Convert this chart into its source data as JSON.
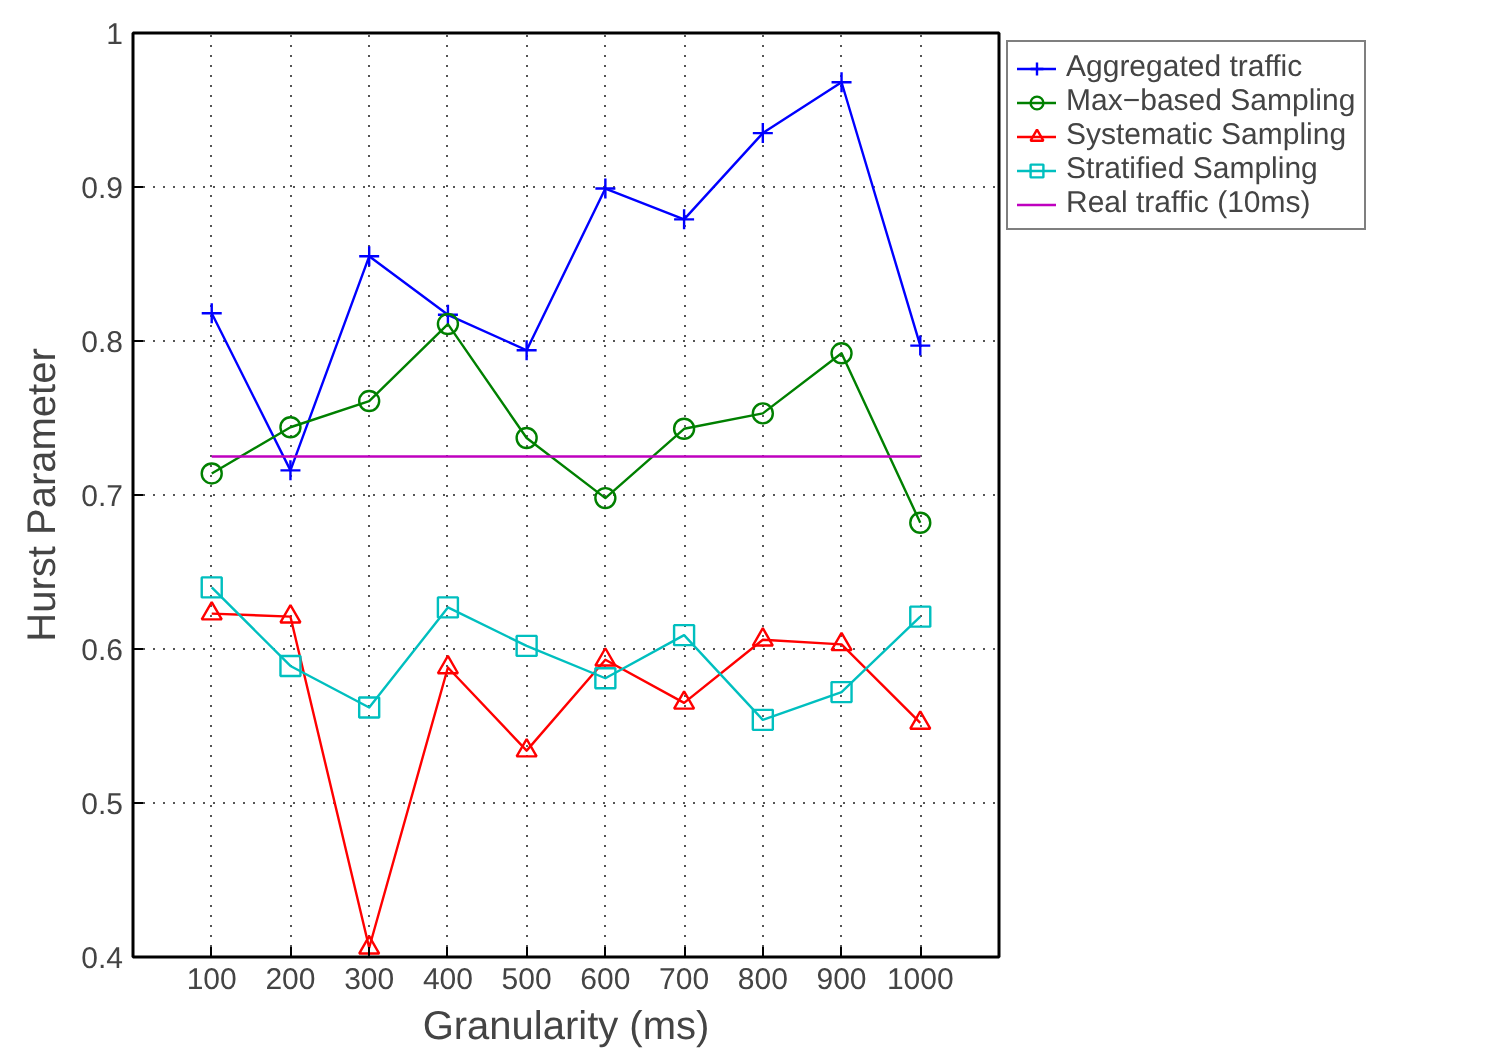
{
  "chart_data": {
    "type": "line",
    "xlabel": "Granularity (ms)",
    "ylabel": "Hurst Parameter",
    "x": [
      100,
      200,
      300,
      400,
      500,
      600,
      700,
      800,
      900,
      1000
    ],
    "series": [
      {
        "name": "Aggregated traffic",
        "color": "#0000ff",
        "marker": "cross",
        "values": [
          0.818,
          0.716,
          0.855,
          0.817,
          0.794,
          0.899,
          0.879,
          0.935,
          0.968,
          0.797
        ]
      },
      {
        "name": "Max−based Sampling",
        "color": "#008000",
        "marker": "circle",
        "values": [
          0.714,
          0.744,
          0.761,
          0.811,
          0.737,
          0.698,
          0.743,
          0.753,
          0.792,
          0.682
        ]
      },
      {
        "name": "Systematic Sampling",
        "color": "#ff0000",
        "marker": "triangle",
        "values": [
          0.623,
          0.621,
          0.406,
          0.588,
          0.534,
          0.593,
          0.565,
          0.606,
          0.603,
          0.552
        ]
      },
      {
        "name": "Stratified Sampling",
        "color": "#00bfbf",
        "marker": "square",
        "values": [
          0.64,
          0.589,
          0.562,
          0.627,
          0.602,
          0.581,
          0.609,
          0.554,
          0.572,
          0.621
        ]
      },
      {
        "name": "Real traffic (10ms)",
        "color": "#bf00bf",
        "marker": "none",
        "values": [
          0.725,
          0.725,
          0.725,
          0.725,
          0.725,
          0.725,
          0.725,
          0.725,
          0.725,
          0.725
        ]
      }
    ],
    "xlim": [
      0,
      1100
    ],
    "xticks": [
      100,
      200,
      300,
      400,
      500,
      600,
      700,
      800,
      900,
      1000
    ],
    "ylim": [
      0.4,
      1
    ],
    "yticks": [
      0.4,
      0.5,
      0.6,
      0.7,
      0.8,
      0.9,
      1
    ],
    "grid": true,
    "legend": "top right",
    "line_style": "solid"
  }
}
